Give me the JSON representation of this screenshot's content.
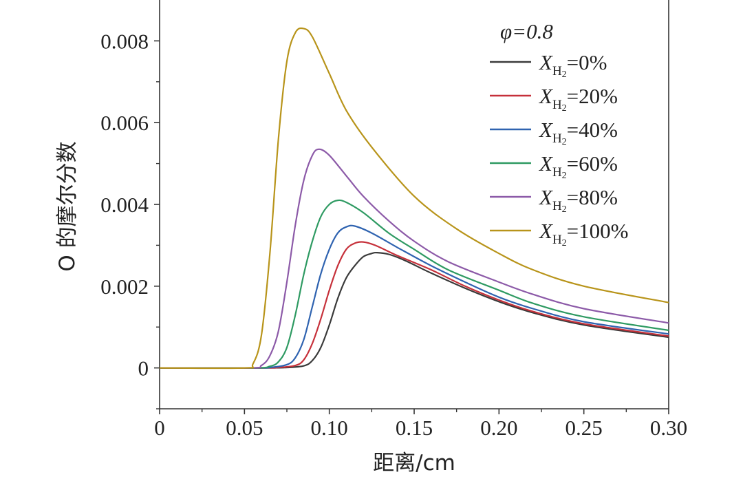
{
  "chart_data": {
    "type": "line",
    "title": "",
    "xlabel": "距离/cm",
    "ylabel": "O 的摩尔分数",
    "xlim": [
      0,
      0.3
    ],
    "ylim": [
      -0.001,
      0.009
    ],
    "x_ticks": [
      0,
      0.05,
      0.1,
      0.15,
      0.2,
      0.25,
      0.3
    ],
    "x_tick_labels": [
      "0",
      "0.05",
      "0.10",
      "0.15",
      "0.20",
      "0.25",
      "0.30"
    ],
    "y_ticks": [
      0,
      0.002,
      0.004,
      0.006,
      0.008
    ],
    "y_tick_labels": [
      "0",
      "0.002",
      "0.004",
      "0.006",
      "0.008"
    ],
    "grid": false,
    "legend_position": "top-right",
    "legend_title": "φ=0.8",
    "legend_var": "X",
    "legend_sub": "H",
    "legend_sub2": "2",
    "series": [
      {
        "name": "=0%",
        "color": "#3a3a3a",
        "x": [
          0,
          0.06,
          0.075,
          0.085,
          0.09,
          0.095,
          0.1,
          0.105,
          0.11,
          0.115,
          0.12,
          0.125,
          0.128,
          0.135,
          0.145,
          0.16,
          0.18,
          0.2,
          0.22,
          0.25,
          0.3
        ],
        "y": [
          0,
          0,
          1e-05,
          5e-05,
          0.00018,
          0.0005,
          0.00105,
          0.0017,
          0.0022,
          0.0025,
          0.00272,
          0.0028,
          0.00282,
          0.00278,
          0.00262,
          0.00232,
          0.00195,
          0.00162,
          0.00135,
          0.00105,
          0.00075
        ]
      },
      {
        "name": "=20%",
        "color": "#c6303a",
        "x": [
          0,
          0.06,
          0.07,
          0.08,
          0.085,
          0.09,
          0.095,
          0.1,
          0.105,
          0.11,
          0.115,
          0.12,
          0.127,
          0.14,
          0.16,
          0.18,
          0.2,
          0.22,
          0.25,
          0.3
        ],
        "y": [
          0,
          0,
          1e-05,
          6e-05,
          0.0002,
          0.0006,
          0.0012,
          0.0019,
          0.0025,
          0.0029,
          0.00305,
          0.00308,
          0.003,
          0.00275,
          0.0024,
          0.002,
          0.00166,
          0.00138,
          0.00108,
          0.00078
        ]
      },
      {
        "name": "=40%",
        "color": "#2f63b0",
        "x": [
          0,
          0.055,
          0.065,
          0.075,
          0.08,
          0.085,
          0.09,
          0.095,
          0.1,
          0.105,
          0.11,
          0.115,
          0.125,
          0.14,
          0.16,
          0.18,
          0.2,
          0.22,
          0.25,
          0.3
        ],
        "y": [
          0,
          0,
          1e-05,
          8e-05,
          0.00025,
          0.0007,
          0.0015,
          0.0023,
          0.0029,
          0.0033,
          0.00345,
          0.00347,
          0.0033,
          0.00295,
          0.0025,
          0.0021,
          0.00173,
          0.00145,
          0.00113,
          0.00083
        ]
      },
      {
        "name": "=60%",
        "color": "#2e9a62",
        "x": [
          0,
          0.055,
          0.065,
          0.07,
          0.075,
          0.08,
          0.085,
          0.09,
          0.095,
          0.1,
          0.105,
          0.11,
          0.12,
          0.135,
          0.15,
          0.17,
          0.2,
          0.22,
          0.25,
          0.3
        ],
        "y": [
          0,
          0,
          4e-05,
          0.00015,
          0.0005,
          0.0013,
          0.0023,
          0.0031,
          0.0037,
          0.004,
          0.0041,
          0.00405,
          0.0038,
          0.0033,
          0.0029,
          0.0024,
          0.0019,
          0.00158,
          0.00125,
          0.00092
        ]
      },
      {
        "name": "=80%",
        "color": "#8c5aa8",
        "x": [
          0,
          0.053,
          0.06,
          0.065,
          0.07,
          0.075,
          0.08,
          0.085,
          0.09,
          0.094,
          0.1,
          0.11,
          0.12,
          0.135,
          0.15,
          0.17,
          0.2,
          0.22,
          0.25,
          0.3
        ],
        "y": [
          0,
          0,
          6e-05,
          0.0003,
          0.0009,
          0.0021,
          0.0035,
          0.0046,
          0.0052,
          0.00535,
          0.0052,
          0.0047,
          0.0042,
          0.0036,
          0.0031,
          0.0026,
          0.0021,
          0.0018,
          0.00145,
          0.0011
        ]
      },
      {
        "name": "=100%",
        "color": "#b8941a",
        "x": [
          0,
          0.05,
          0.055,
          0.06,
          0.065,
          0.07,
          0.075,
          0.08,
          0.085,
          0.09,
          0.1,
          0.11,
          0.125,
          0.15,
          0.175,
          0.2,
          0.22,
          0.25,
          0.3
        ],
        "y": [
          0,
          0,
          0.0001,
          0.0008,
          0.0028,
          0.0056,
          0.0075,
          0.0082,
          0.0083,
          0.0081,
          0.0072,
          0.0063,
          0.0054,
          0.0042,
          0.0034,
          0.0028,
          0.0024,
          0.002,
          0.0016
        ]
      }
    ]
  }
}
